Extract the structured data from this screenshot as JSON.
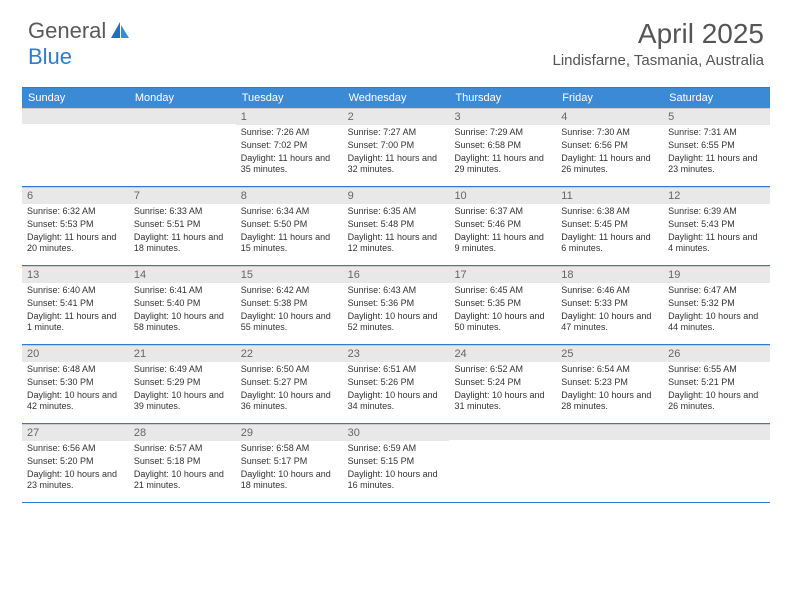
{
  "logo": {
    "main": "General",
    "accent": "Blue"
  },
  "title": "April 2025",
  "location": "Lindisfarne, Tasmania, Australia",
  "colors": {
    "header_bg": "#3a8ad6",
    "border": "#2e7cd1",
    "daynum_bg": "#e8e8e8",
    "text": "#333333",
    "title_text": "#555555"
  },
  "weekdays": [
    "Sunday",
    "Monday",
    "Tuesday",
    "Wednesday",
    "Thursday",
    "Friday",
    "Saturday"
  ],
  "weeks": [
    [
      {
        "n": "",
        "lines": []
      },
      {
        "n": "",
        "lines": []
      },
      {
        "n": "1",
        "lines": [
          "Sunrise: 7:26 AM",
          "Sunset: 7:02 PM",
          "Daylight: 11 hours and 35 minutes."
        ]
      },
      {
        "n": "2",
        "lines": [
          "Sunrise: 7:27 AM",
          "Sunset: 7:00 PM",
          "Daylight: 11 hours and 32 minutes."
        ]
      },
      {
        "n": "3",
        "lines": [
          "Sunrise: 7:29 AM",
          "Sunset: 6:58 PM",
          "Daylight: 11 hours and 29 minutes."
        ]
      },
      {
        "n": "4",
        "lines": [
          "Sunrise: 7:30 AM",
          "Sunset: 6:56 PM",
          "Daylight: 11 hours and 26 minutes."
        ]
      },
      {
        "n": "5",
        "lines": [
          "Sunrise: 7:31 AM",
          "Sunset: 6:55 PM",
          "Daylight: 11 hours and 23 minutes."
        ]
      }
    ],
    [
      {
        "n": "6",
        "lines": [
          "Sunrise: 6:32 AM",
          "Sunset: 5:53 PM",
          "Daylight: 11 hours and 20 minutes."
        ]
      },
      {
        "n": "7",
        "lines": [
          "Sunrise: 6:33 AM",
          "Sunset: 5:51 PM",
          "Daylight: 11 hours and 18 minutes."
        ]
      },
      {
        "n": "8",
        "lines": [
          "Sunrise: 6:34 AM",
          "Sunset: 5:50 PM",
          "Daylight: 11 hours and 15 minutes."
        ]
      },
      {
        "n": "9",
        "lines": [
          "Sunrise: 6:35 AM",
          "Sunset: 5:48 PM",
          "Daylight: 11 hours and 12 minutes."
        ]
      },
      {
        "n": "10",
        "lines": [
          "Sunrise: 6:37 AM",
          "Sunset: 5:46 PM",
          "Daylight: 11 hours and 9 minutes."
        ]
      },
      {
        "n": "11",
        "lines": [
          "Sunrise: 6:38 AM",
          "Sunset: 5:45 PM",
          "Daylight: 11 hours and 6 minutes."
        ]
      },
      {
        "n": "12",
        "lines": [
          "Sunrise: 6:39 AM",
          "Sunset: 5:43 PM",
          "Daylight: 11 hours and 4 minutes."
        ]
      }
    ],
    [
      {
        "n": "13",
        "lines": [
          "Sunrise: 6:40 AM",
          "Sunset: 5:41 PM",
          "Daylight: 11 hours and 1 minute."
        ]
      },
      {
        "n": "14",
        "lines": [
          "Sunrise: 6:41 AM",
          "Sunset: 5:40 PM",
          "Daylight: 10 hours and 58 minutes."
        ]
      },
      {
        "n": "15",
        "lines": [
          "Sunrise: 6:42 AM",
          "Sunset: 5:38 PM",
          "Daylight: 10 hours and 55 minutes."
        ]
      },
      {
        "n": "16",
        "lines": [
          "Sunrise: 6:43 AM",
          "Sunset: 5:36 PM",
          "Daylight: 10 hours and 52 minutes."
        ]
      },
      {
        "n": "17",
        "lines": [
          "Sunrise: 6:45 AM",
          "Sunset: 5:35 PM",
          "Daylight: 10 hours and 50 minutes."
        ]
      },
      {
        "n": "18",
        "lines": [
          "Sunrise: 6:46 AM",
          "Sunset: 5:33 PM",
          "Daylight: 10 hours and 47 minutes."
        ]
      },
      {
        "n": "19",
        "lines": [
          "Sunrise: 6:47 AM",
          "Sunset: 5:32 PM",
          "Daylight: 10 hours and 44 minutes."
        ]
      }
    ],
    [
      {
        "n": "20",
        "lines": [
          "Sunrise: 6:48 AM",
          "Sunset: 5:30 PM",
          "Daylight: 10 hours and 42 minutes."
        ]
      },
      {
        "n": "21",
        "lines": [
          "Sunrise: 6:49 AM",
          "Sunset: 5:29 PM",
          "Daylight: 10 hours and 39 minutes."
        ]
      },
      {
        "n": "22",
        "lines": [
          "Sunrise: 6:50 AM",
          "Sunset: 5:27 PM",
          "Daylight: 10 hours and 36 minutes."
        ]
      },
      {
        "n": "23",
        "lines": [
          "Sunrise: 6:51 AM",
          "Sunset: 5:26 PM",
          "Daylight: 10 hours and 34 minutes."
        ]
      },
      {
        "n": "24",
        "lines": [
          "Sunrise: 6:52 AM",
          "Sunset: 5:24 PM",
          "Daylight: 10 hours and 31 minutes."
        ]
      },
      {
        "n": "25",
        "lines": [
          "Sunrise: 6:54 AM",
          "Sunset: 5:23 PM",
          "Daylight: 10 hours and 28 minutes."
        ]
      },
      {
        "n": "26",
        "lines": [
          "Sunrise: 6:55 AM",
          "Sunset: 5:21 PM",
          "Daylight: 10 hours and 26 minutes."
        ]
      }
    ],
    [
      {
        "n": "27",
        "lines": [
          "Sunrise: 6:56 AM",
          "Sunset: 5:20 PM",
          "Daylight: 10 hours and 23 minutes."
        ]
      },
      {
        "n": "28",
        "lines": [
          "Sunrise: 6:57 AM",
          "Sunset: 5:18 PM",
          "Daylight: 10 hours and 21 minutes."
        ]
      },
      {
        "n": "29",
        "lines": [
          "Sunrise: 6:58 AM",
          "Sunset: 5:17 PM",
          "Daylight: 10 hours and 18 minutes."
        ]
      },
      {
        "n": "30",
        "lines": [
          "Sunrise: 6:59 AM",
          "Sunset: 5:15 PM",
          "Daylight: 10 hours and 16 minutes."
        ]
      },
      {
        "n": "",
        "lines": []
      },
      {
        "n": "",
        "lines": []
      },
      {
        "n": "",
        "lines": []
      }
    ]
  ]
}
